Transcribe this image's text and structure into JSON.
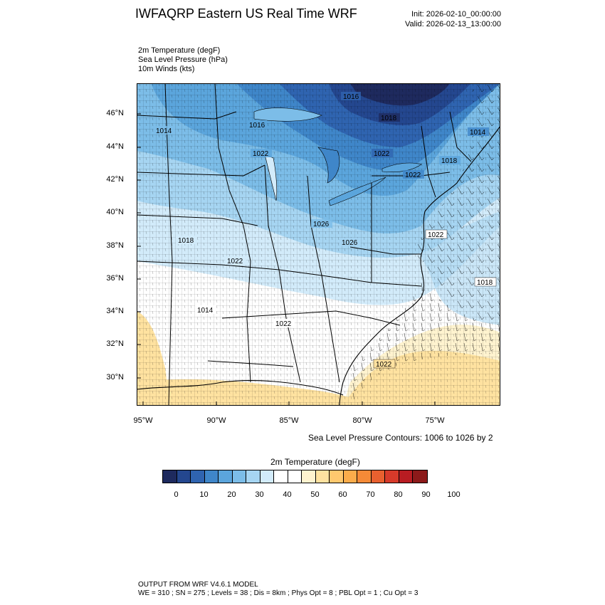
{
  "title": "IWFAQRP Eastern US Real Time WRF",
  "init": "Init: 2026-02-10_00:00:00",
  "valid": "Valid: 2026-02-13_13:00:00",
  "variables": [
    "2m Temperature   (degF)",
    "Sea Level Pressure   (hPa)",
    "10m Winds   (kts)"
  ],
  "lat_labels": [
    "46°N",
    "44°N",
    "42°N",
    "40°N",
    "38°N",
    "36°N",
    "34°N",
    "32°N",
    "30°N"
  ],
  "lon_labels": [
    "95°W",
    "90°W",
    "85°W",
    "80°W",
    "75°W"
  ],
  "contour_note": "Sea Level Pressure Contours: 1006 to 1026 by 2",
  "pressure_labels": [
    "1014",
    "1016",
    "1016",
    "1018",
    "1014",
    "1022",
    "1022",
    "1022",
    "1018",
    "1026",
    "1026",
    "1022",
    "1018",
    "1022",
    "1018",
    "1014",
    "1022",
    "1022"
  ],
  "colorbar": {
    "title": "2m Temperature  (degF)",
    "colors": [
      "#1e2a5e",
      "#24478f",
      "#2f64b0",
      "#3f86c9",
      "#5ba5dc",
      "#7cbde8",
      "#a6d5f2",
      "#d2ebfa",
      "#ffffff",
      "#ffffff",
      "#fff3cf",
      "#ffe2a0",
      "#ffc86e",
      "#fbac4b",
      "#f58a37",
      "#e8602f",
      "#d73a2a",
      "#b81c22",
      "#8c1a1a"
    ],
    "tick_labels": [
      "0",
      "10",
      "20",
      "30",
      "40",
      "50",
      "60",
      "70",
      "80",
      "90",
      "100"
    ]
  },
  "footer": {
    "line1": "OUTPUT FROM WRF V4.6.1 MODEL",
    "line2": "WE = 310 ; SN = 275 ; Levels = 38 ; Dis = 8km ; Phys Opt = 8 ; PBL Opt = 1 ; Cu Opt = 3"
  }
}
